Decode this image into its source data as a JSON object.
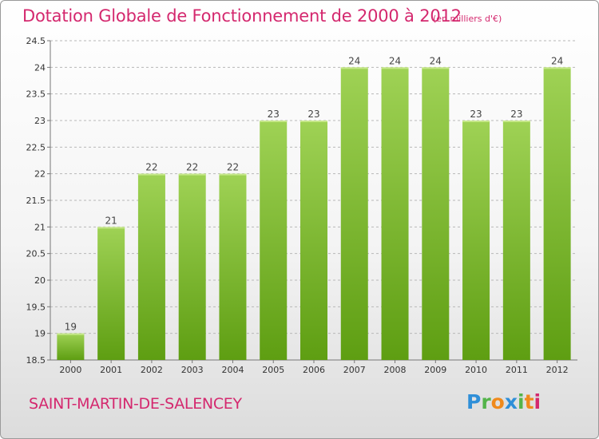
{
  "header": {
    "title": "Dotation Globale de Fonctionnement de 2000 à 2012",
    "subtitle": "(en milliers d'€)"
  },
  "footer": {
    "commune": "SAINT-MARTIN-DE-SALENCEY",
    "logo": [
      "P",
      "r",
      "o",
      "x",
      "i",
      "t",
      "i"
    ]
  },
  "colors": {
    "title": "#d4286e",
    "bar_top": "#9fd255",
    "bar_bottom": "#5e9e12",
    "grid": "#b8b8b8"
  },
  "chart_data": {
    "type": "bar",
    "title": "Dotation Globale de Fonctionnement de 2000 à 2012",
    "subtitle": "(en milliers d'€)",
    "categories": [
      "2000",
      "2001",
      "2002",
      "2003",
      "2004",
      "2005",
      "2006",
      "2007",
      "2008",
      "2009",
      "2010",
      "2011",
      "2012"
    ],
    "values": [
      19,
      21,
      22,
      22,
      22,
      23,
      23,
      24,
      24,
      24,
      23,
      23,
      24
    ],
    "data_labels": [
      "19",
      "21",
      "22",
      "22",
      "22",
      "23",
      "23",
      "24",
      "24",
      "24",
      "23",
      "23",
      "24"
    ],
    "ylim": [
      18.5,
      24.5
    ],
    "yticks": [
      "18.5",
      "19",
      "19.5",
      "20",
      "20.5",
      "21",
      "21.5",
      "22",
      "22.5",
      "23",
      "23.5",
      "24",
      "24.5"
    ],
    "xlabel": "",
    "ylabel": "",
    "grid": "horizontal dashed"
  }
}
